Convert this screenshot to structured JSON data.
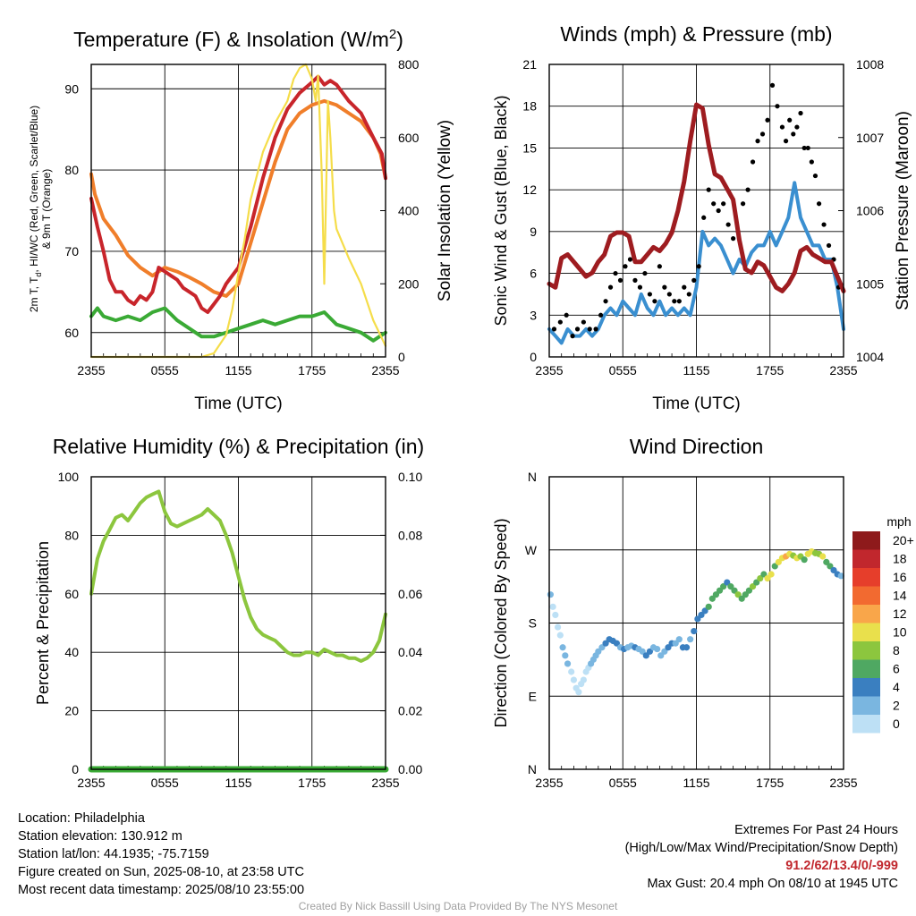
{
  "chart_data": [
    {
      "type": "line",
      "title_main": "Temperature (F) & Insolation (W/m",
      "title_sup": "2",
      "title_end": ")",
      "xlabel": "Time (UTC)",
      "ylabel_line1": "2m T, T",
      "ylabel_sub": "d",
      "ylabel_line1_rest": ", HI/WC (Red, Green, Scarlet/Blue)",
      "ylabel_line2": "& 9m T (Orange)",
      "y2label": "Solar Insolation (Yellow)",
      "x_ticks": [
        "2355",
        "0555",
        "1155",
        "1755",
        "2355"
      ],
      "xlim": [
        0,
        24
      ],
      "ylim": [
        57,
        93
      ],
      "y_ticks": [
        60,
        70,
        80,
        90
      ],
      "y2lim": [
        0,
        800
      ],
      "y2_ticks": [
        0,
        200,
        400,
        600,
        800
      ],
      "series": [
        {
          "axis": "y1",
          "color": "#f07e2a",
          "x": [
            0,
            0.3,
            1,
            2,
            3,
            4,
            5,
            6,
            7,
            8,
            9,
            10,
            11,
            12,
            13,
            14,
            15,
            16,
            17,
            18,
            19,
            20,
            21,
            22,
            23,
            23.6,
            24
          ],
          "y": [
            79.5,
            77,
            74,
            72,
            69.5,
            68,
            67,
            68,
            67.5,
            66.8,
            66,
            65,
            64.5,
            66,
            71,
            76,
            81,
            85,
            87,
            88,
            88.5,
            88,
            87,
            86,
            84,
            82,
            79
          ]
        },
        {
          "axis": "y1",
          "color": "#c8252b",
          "x": [
            0,
            0.5,
            1,
            1.5,
            2,
            2.5,
            3,
            3.5,
            4,
            4.5,
            5,
            5.5,
            6,
            6.5,
            7,
            7.5,
            8,
            8.5,
            9,
            9.5,
            10,
            10.5,
            11,
            11.5,
            12,
            13,
            14,
            15,
            16,
            17,
            18,
            18.5,
            19,
            19.5,
            20,
            21,
            22,
            23,
            23.7,
            24
          ],
          "y": [
            76.5,
            73,
            70,
            66.5,
            65,
            65,
            64,
            63.5,
            64.5,
            64,
            65,
            68,
            67.5,
            67,
            66.5,
            65.5,
            65,
            64.5,
            63,
            62.5,
            63.5,
            64.5,
            66,
            67,
            68,
            73,
            79,
            84,
            87.5,
            89.5,
            90.8,
            91.5,
            90.5,
            91,
            90.5,
            88.5,
            87,
            84,
            82,
            79
          ]
        },
        {
          "axis": "y1",
          "color": "#3aaa35",
          "x": [
            0,
            0.5,
            1,
            2,
            3,
            4,
            5,
            6,
            7,
            8,
            9,
            10,
            11,
            12,
            13,
            14,
            15,
            16,
            17,
            18,
            19,
            20,
            21,
            22,
            23,
            24
          ],
          "y": [
            62,
            63,
            62,
            61.5,
            62,
            61.5,
            62.5,
            63,
            61.5,
            60.5,
            59.5,
            59.5,
            60,
            60.5,
            61,
            61.5,
            61,
            61.5,
            62,
            62,
            62.5,
            61,
            60.5,
            60,
            59,
            60
          ]
        },
        {
          "axis": "y2",
          "color": "#f5dd4a",
          "x": [
            0,
            9,
            10,
            11,
            11.5,
            12,
            12.5,
            13,
            14,
            15,
            16,
            16.5,
            17,
            17.5,
            18,
            18.3,
            18.5,
            18.8,
            19,
            19.3,
            19.5,
            19.8,
            20,
            21,
            22,
            23,
            24
          ],
          "y": [
            0,
            0,
            10,
            60,
            130,
            230,
            320,
            430,
            560,
            640,
            700,
            760,
            790,
            800,
            760,
            700,
            770,
            500,
            200,
            700,
            600,
            400,
            350,
            270,
            200,
            100,
            30
          ]
        }
      ]
    },
    {
      "type": "line",
      "title": "Winds (mph) & Pressure (mb)",
      "xlabel": "Time (UTC)",
      "ylabel": "Sonic Wind & Gust (Blue, Black)",
      "y2label": "Station Pressure (Maroon)",
      "x_ticks": [
        "2355",
        "0555",
        "1155",
        "1755",
        "2355"
      ],
      "xlim": [
        0,
        24
      ],
      "ylim": [
        0,
        21
      ],
      "y_ticks": [
        0,
        3,
        6,
        9,
        12,
        15,
        18,
        21
      ],
      "y2lim": [
        1004,
        1008
      ],
      "y2_ticks": [
        1004,
        1005,
        1006,
        1007,
        1008
      ],
      "series": [
        {
          "axis": "y1",
          "color": "#3a8fd0",
          "x": [
            0,
            0.5,
            1,
            1.5,
            2,
            2.5,
            3,
            3.5,
            4,
            4.5,
            5,
            5.5,
            6,
            6.5,
            7,
            7.5,
            8,
            8.5,
            9,
            9.5,
            10,
            10.5,
            11,
            11.5,
            12,
            12.5,
            13,
            13.5,
            14,
            14.5,
            15,
            15.5,
            16,
            16.5,
            17,
            17.5,
            18,
            18.5,
            19,
            19.5,
            20,
            20.5,
            21,
            21.5,
            22,
            22.5,
            23,
            23.5,
            24
          ],
          "y": [
            2,
            1.5,
            1,
            2,
            1.5,
            1.5,
            2,
            1.5,
            2,
            3,
            3.5,
            3,
            4,
            3.5,
            3,
            4.5,
            3.5,
            3,
            4,
            3,
            3.5,
            3,
            3.5,
            3,
            5,
            9,
            8,
            8.5,
            8,
            7,
            6,
            7,
            6.5,
            7.5,
            8,
            8,
            9,
            8,
            9,
            10,
            12.5,
            10,
            9,
            8,
            8,
            7,
            7,
            5,
            2
          ]
        },
        {
          "axis": "y1",
          "color": "#000000",
          "style": "dots",
          "x": [
            0.4,
            0.9,
            1.4,
            1.9,
            2.3,
            2.8,
            3.3,
            3.8,
            4.2,
            4.6,
            5.0,
            5.4,
            5.8,
            6.2,
            6.6,
            7.0,
            7.4,
            7.8,
            8.2,
            8.6,
            9.0,
            9.4,
            9.8,
            10.2,
            10.6,
            11.0,
            11.4,
            11.8,
            12.2,
            12.6,
            13.0,
            13.4,
            13.8,
            14.2,
            14.6,
            15.0,
            15.4,
            15.8,
            16.2,
            16.6,
            17.0,
            17.4,
            17.8,
            18.2,
            18.6,
            19.0,
            19.3,
            19.6,
            19.9,
            20.2,
            20.5,
            20.8,
            21.1,
            21.4,
            21.7,
            22.0,
            22.4,
            22.8,
            23.2,
            23.6
          ],
          "y": [
            2,
            2.5,
            3,
            1.5,
            2,
            2.5,
            2,
            2,
            3,
            4,
            5,
            6,
            5.5,
            6.5,
            7,
            5.5,
            5,
            6,
            4.5,
            4,
            6.5,
            5,
            4.5,
            4,
            4,
            5,
            4.5,
            5.5,
            6.5,
            10,
            12,
            11,
            10.5,
            11,
            9.5,
            8.5,
            9,
            11,
            12,
            14,
            15.5,
            16,
            17,
            19.5,
            18,
            16.5,
            15.5,
            17,
            16,
            16.5,
            17.5,
            15,
            15,
            14,
            13,
            11,
            9.5,
            8,
            7,
            5
          ]
        },
        {
          "axis": "y2",
          "color": "#9e1c20",
          "x": [
            0,
            0.5,
            1,
            1.5,
            2,
            2.5,
            3,
            3.5,
            4,
            4.5,
            5,
            5.5,
            6,
            6.5,
            7,
            7.5,
            8,
            8.5,
            9,
            9.5,
            10,
            10.5,
            11,
            11.5,
            12,
            12.5,
            13,
            13.5,
            14,
            14.5,
            15,
            15.5,
            16,
            16.5,
            17,
            17.5,
            18,
            18.5,
            19,
            19.5,
            20,
            20.5,
            21,
            21.5,
            22,
            22.5,
            23,
            23.5,
            24
          ],
          "y": [
            1005,
            1004.95,
            1005.35,
            1005.4,
            1005.3,
            1005.2,
            1005.1,
            1005.15,
            1005.3,
            1005.4,
            1005.65,
            1005.7,
            1005.7,
            1005.65,
            1005.3,
            1005.3,
            1005.4,
            1005.5,
            1005.45,
            1005.55,
            1005.7,
            1006,
            1006.4,
            1006.95,
            1007.45,
            1007.4,
            1006.9,
            1006.5,
            1006.45,
            1006.3,
            1006.15,
            1005.6,
            1005.2,
            1005.15,
            1005.3,
            1005.25,
            1005.1,
            1004.95,
            1004.9,
            1005.0,
            1005.15,
            1005.45,
            1005.5,
            1005.4,
            1005.35,
            1005.3,
            1005.3,
            1005.1,
            1004.9
          ]
        }
      ]
    },
    {
      "type": "line",
      "title": "Relative Humidity (%) & Precipitation (in)",
      "xlabel": "",
      "ylabel": "Percent & Precipitation",
      "x_ticks": [
        "2355",
        "0555",
        "1155",
        "1755",
        "2355"
      ],
      "xlim": [
        0,
        24
      ],
      "ylim": [
        0,
        100
      ],
      "y_ticks": [
        0,
        20,
        40,
        60,
        80,
        100
      ],
      "y2lim": [
        0,
        0.1
      ],
      "y2_ticks": [
        "0.00",
        "0.02",
        "0.04",
        "0.06",
        "0.08",
        "0.10"
      ],
      "series": [
        {
          "axis": "y1",
          "color": "#8cc63e",
          "x": [
            0,
            0.5,
            1,
            1.5,
            2,
            2.5,
            3,
            3.5,
            4,
            4.5,
            5,
            5.5,
            6,
            6.5,
            7,
            7.5,
            8,
            8.5,
            9,
            9.5,
            10,
            10.5,
            11,
            11.5,
            12,
            12.5,
            13,
            13.5,
            14,
            14.5,
            15,
            15.5,
            16,
            16.5,
            17,
            17.5,
            18,
            18.5,
            19,
            19.5,
            20,
            20.5,
            21,
            21.5,
            22,
            22.5,
            23,
            23.5,
            24
          ],
          "y": [
            60,
            72,
            78,
            82,
            86,
            87,
            85,
            88,
            91,
            93,
            94,
            95,
            88,
            84,
            83,
            84,
            85,
            86,
            87,
            89,
            87,
            85,
            80,
            74,
            66,
            58,
            52,
            48,
            46,
            45,
            44,
            42,
            40,
            39,
            39,
            40,
            40,
            39,
            41,
            40,
            39,
            39,
            38,
            38,
            37,
            38,
            40,
            44,
            53
          ]
        },
        {
          "axis": "y2",
          "color": "#3aaa35",
          "x": [
            0,
            24
          ],
          "y": [
            0,
            0
          ]
        }
      ]
    },
    {
      "type": "scatter",
      "title": "Wind Direction",
      "xlabel": "",
      "ylabel": "Direction (Colored By Speed)",
      "x_ticks": [
        "2355",
        "0555",
        "1155",
        "1755",
        "2355"
      ],
      "xlim": [
        0,
        24
      ],
      "y_ticks": [
        "N",
        "E",
        "S",
        "W",
        "N"
      ],
      "ylim": [
        0,
        360
      ],
      "colorbar": {
        "title": "mph",
        "labels": [
          "20+",
          "18",
          "16",
          "14",
          "12",
          "10",
          "8",
          "6",
          "4",
          "2",
          "0"
        ],
        "colors": [
          "#8e1a1b",
          "#c1272d",
          "#e63e2b",
          "#f26a30",
          "#f9a64a",
          "#e9e04c",
          "#8cc63e",
          "#4fa862",
          "#3a7fc0",
          "#7ab6e0",
          "#bde0f5"
        ]
      },
      "points": {
        "x": [
          0.1,
          0.3,
          0.5,
          0.7,
          0.9,
          1.1,
          1.3,
          1.5,
          1.8,
          2.0,
          2.2,
          2.4,
          2.6,
          2.8,
          3.0,
          3.2,
          3.4,
          3.6,
          3.8,
          4.0,
          4.3,
          4.6,
          4.9,
          5.2,
          5.5,
          5.8,
          6.1,
          6.4,
          6.7,
          7.0,
          7.3,
          7.6,
          7.9,
          8.2,
          8.5,
          8.8,
          9.1,
          9.4,
          9.7,
          10.0,
          10.3,
          10.6,
          10.9,
          11.2,
          11.5,
          11.8,
          12.1,
          12.4,
          12.7,
          13.0,
          13.3,
          13.6,
          13.9,
          14.2,
          14.5,
          14.8,
          15.1,
          15.4,
          15.7,
          16.0,
          16.3,
          16.6,
          16.9,
          17.2,
          17.5,
          17.8,
          18.1,
          18.4,
          18.7,
          19.0,
          19.3,
          19.6,
          19.9,
          20.2,
          20.5,
          20.8,
          21.1,
          21.4,
          21.7,
          22.0,
          22.3,
          22.6,
          22.9,
          23.2,
          23.5,
          23.8
        ],
        "y": [
          215,
          200,
          190,
          175,
          165,
          150,
          140,
          130,
          120,
          110,
          100,
          95,
          105,
          110,
          120,
          125,
          130,
          135,
          140,
          145,
          150,
          155,
          160,
          158,
          155,
          150,
          148,
          150,
          152,
          150,
          148,
          145,
          140,
          145,
          150,
          148,
          140,
          145,
          150,
          155,
          155,
          160,
          150,
          150,
          160,
          170,
          185,
          190,
          195,
          200,
          210,
          215,
          220,
          225,
          230,
          225,
          220,
          215,
          210,
          215,
          220,
          225,
          230,
          235,
          240,
          235,
          240,
          250,
          255,
          260,
          262,
          265,
          263,
          260,
          262,
          258,
          265,
          268,
          266,
          265,
          262,
          255,
          250,
          245,
          240,
          238
        ],
        "v": [
          2,
          1,
          0,
          1,
          0,
          2,
          2,
          2,
          1,
          1,
          0,
          0,
          1,
          1,
          0,
          1,
          2,
          2,
          3,
          3,
          3,
          4,
          4,
          4,
          4,
          3,
          4,
          3,
          3,
          4,
          3,
          3,
          4,
          4,
          3,
          2,
          3,
          3,
          4,
          4,
          3,
          3,
          4,
          4,
          3,
          4,
          4,
          4,
          5,
          6,
          7,
          7,
          6,
          7,
          5,
          6,
          6,
          8,
          7,
          7,
          6,
          8,
          6,
          9,
          7,
          10,
          11,
          7,
          10,
          11,
          12,
          10,
          8,
          11,
          9,
          7,
          11,
          10,
          8,
          9,
          10,
          7,
          6,
          5,
          4,
          3
        ]
      }
    }
  ],
  "info": {
    "location": "Location: Philadelphia",
    "elevation": "Station elevation: 130.912 m",
    "latlon": "Station lat/lon: 44.1935; -75.7159",
    "created": "Figure created on Sun, 2025-08-10, at 23:58 UTC",
    "recent": "Most recent data timestamp: 2025/08/10 23:55:00"
  },
  "extremes": {
    "title": "Extremes For Past 24 Hours",
    "subtitle": "(High/Low/Max Wind/Precipitation/Snow Depth)",
    "values": "91.2/62/13.4/0/-999",
    "max_gust": "Max Gust: 20.4 mph On 08/10 at 1945 UTC"
  },
  "credit": "Created By Nick Bassill Using Data Provided By The NYS Mesonet"
}
